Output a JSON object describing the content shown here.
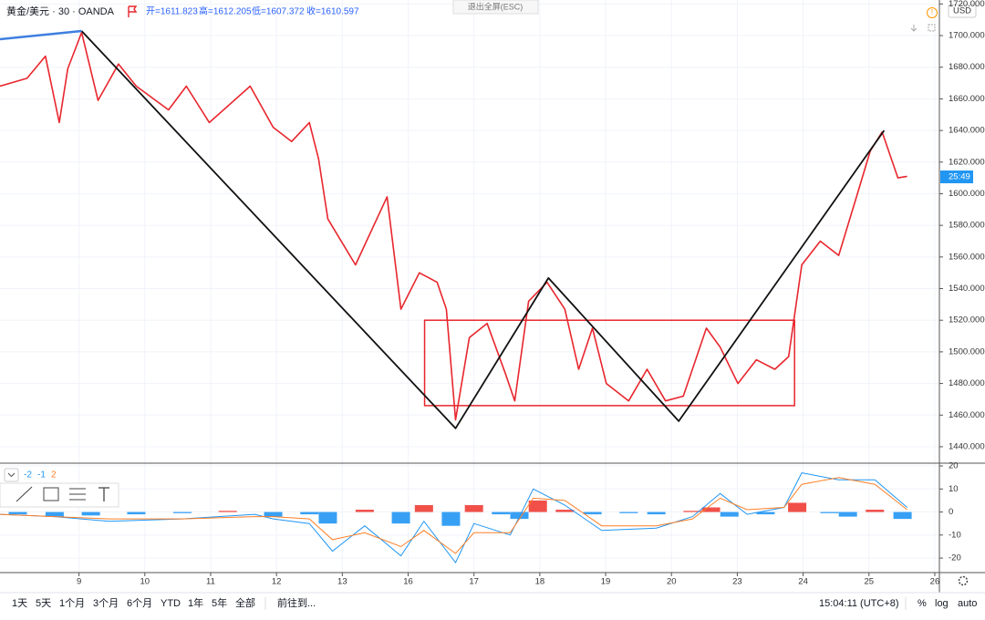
{
  "header": {
    "symbol": "黄金/美元 · 30 · OANDA",
    "open": "开=1611.823",
    "high": "高=1612.205",
    "low": "低=1607.372",
    "close": "收=1610.597"
  },
  "exit_fullscreen": "退出全屏(ESC)",
  "currency": "USD",
  "countdown": "25:49",
  "indicator_params": [
    "-2",
    "-1",
    "2"
  ],
  "chart_data": [
    {
      "type": "line",
      "xlim": [
        -1.2,
        13.07
      ],
      "ylim": [
        1429.6,
        1722.5
      ],
      "yticks": [
        {
          "value": 1440,
          "label": "1440.000"
        },
        {
          "value": 1460,
          "label": "1460.000"
        },
        {
          "value": 1480,
          "label": "1480.000"
        },
        {
          "value": 1500,
          "label": "1500.000"
        },
        {
          "value": 1520,
          "label": "1520.000"
        },
        {
          "value": 1540,
          "label": "1540.000"
        },
        {
          "value": 1560,
          "label": "1560.000"
        },
        {
          "value": 1580,
          "label": "1580.000"
        },
        {
          "value": 1600,
          "label": "1600.000"
        },
        {
          "value": 1620,
          "label": "1620.000"
        },
        {
          "value": 1640,
          "label": "1640.000"
        },
        {
          "value": 1660,
          "label": "1660.000"
        },
        {
          "value": 1680,
          "label": "1680.000"
        },
        {
          "value": 1700,
          "label": "1700.000"
        },
        {
          "value": 1720,
          "label": "1720.000"
        }
      ],
      "grid": true,
      "series": [
        {
          "color": "#e8262d",
          "width": 1.6,
          "x": [
            -1.2,
            -0.79,
            -0.51,
            -0.3,
            -0.17,
            0.04,
            0.29,
            0.6,
            0.87,
            1.36,
            1.63,
            1.98,
            2.6,
            2.95,
            3.23,
            3.5,
            3.64,
            3.78,
            4.2,
            4.68,
            4.89,
            5.17,
            5.44,
            5.58,
            5.72,
            5.93,
            6.2,
            6.48,
            6.62,
            6.83,
            7.11,
            7.38,
            7.59,
            7.8,
            8.01,
            8.35,
            8.63,
            8.91,
            9.18,
            9.53,
            9.74,
            10.01,
            10.29,
            10.57,
            10.78,
            10.98,
            11.26,
            11.54,
            11.81,
            12.02,
            12.2,
            12.44,
            12.58
          ],
          "values": [
            1668,
            1673,
            1687,
            1645,
            1679,
            1702,
            1659,
            1682,
            1668,
            1653,
            1668,
            1645,
            1668,
            1642,
            1633,
            1645,
            1622,
            1584,
            1555,
            1598,
            1527,
            1550,
            1544,
            1527,
            1457,
            1509,
            1518,
            1486,
            1469,
            1532,
            1544,
            1527,
            1489,
            1515,
            1480,
            1469,
            1489,
            1469,
            1472,
            1515,
            1503,
            1480,
            1495,
            1489,
            1497,
            1555,
            1570,
            1561,
            1598,
            1627,
            1639,
            1610,
            1611
          ]
        },
        {
          "color": "#111111",
          "width": 1.8,
          "x": [
            0.04,
            5.72,
            7.13,
            9.11,
            12.23
          ],
          "values": [
            1702.9,
            1451.6,
            1546.7,
            1456.2,
            1640
          ]
        },
        {
          "color": "#3f7fe0",
          "width": 2.4,
          "x": [
            -1.2,
            0.04
          ],
          "values": [
            1697.7,
            1702.9
          ]
        }
      ],
      "box": {
        "x": [
          5.25,
          10.87
        ],
        "y": [
          1466,
          1520
        ],
        "color": "#e8262d"
      }
    },
    {
      "type": "macd",
      "xlim": [
        -1.2,
        13.07
      ],
      "ylim": [
        -26.3,
        21.2
      ],
      "xticks": [
        {
          "value": 0,
          "label": "9"
        },
        {
          "value": 1,
          "label": "10"
        },
        {
          "value": 2,
          "label": "11"
        },
        {
          "value": 3,
          "label": "12"
        },
        {
          "value": 4,
          "label": "13"
        },
        {
          "value": 5,
          "label": "16"
        },
        {
          "value": 6,
          "label": "17"
        },
        {
          "value": 7,
          "label": "18"
        },
        {
          "value": 8,
          "label": "19"
        },
        {
          "value": 9,
          "label": "20"
        },
        {
          "value": 10,
          "label": "23"
        },
        {
          "value": 11,
          "label": "24"
        },
        {
          "value": 12,
          "label": "25"
        },
        {
          "value": 13,
          "label": "26"
        }
      ],
      "yticks": [
        -20,
        -10,
        0,
        10,
        20
      ],
      "grid": true,
      "x": [
        -1.2,
        -0.37,
        0.46,
        1.57,
        2.67,
        2.95,
        3.5,
        3.85,
        4.34,
        4.89,
        5.24,
        5.72,
        6.0,
        6.55,
        6.9,
        7.38,
        7.94,
        8.77,
        9.32,
        9.74,
        10.15,
        10.71,
        10.98,
        11.54,
        12.09,
        12.58
      ],
      "series": [
        {
          "color": "#2196f3",
          "values": [
            -1,
            -2,
            -4,
            -3,
            -1,
            -3,
            -5,
            -17,
            -6,
            -19,
            -4,
            -22,
            -5,
            -10,
            10,
            3,
            -8,
            -7,
            -2,
            8,
            -1,
            2,
            17,
            14,
            14,
            2
          ]
        },
        {
          "color": "#ff7f27",
          "values": [
            -1,
            -2,
            -3,
            -3,
            -2,
            -2,
            -3,
            -12,
            -9,
            -15,
            -8,
            -18,
            -9,
            -9,
            6,
            5,
            -6,
            -6,
            -3,
            6,
            1,
            2,
            12,
            15,
            12,
            1
          ]
        }
      ],
      "histogram": {
        "x": [
          -0.93,
          -0.37,
          0.18,
          0.87,
          1.57,
          2.26,
          2.95,
          3.5,
          3.78,
          4.34,
          4.89,
          5.24,
          5.65,
          6.0,
          6.41,
          6.69,
          6.97,
          7.38,
          7.8,
          8.35,
          8.77,
          9.32,
          9.6,
          9.88,
          10.43,
          10.91,
          11.4,
          11.68,
          12.09,
          12.51
        ],
        "values": [
          -1,
          -2,
          -1.5,
          -1,
          -0.5,
          0.5,
          -2,
          -1,
          -5,
          1,
          -5,
          3,
          -6,
          3,
          -1,
          -3,
          5,
          1,
          -1,
          -0.5,
          -1,
          0.5,
          2,
          -2,
          -1,
          4,
          -0.5,
          -2,
          1,
          -3
        ],
        "colors": {
          "positive": "#ef3d35",
          "negative": "#2196f3"
        }
      }
    }
  ],
  "bottom_bar": {
    "ranges": [
      "1天",
      "5天",
      "1个月",
      "3个月",
      "6个月",
      "YTD",
      "1年",
      "5年",
      "全部"
    ],
    "goto": "前往到...",
    "time": "15:04:11 (UTC+8)",
    "percent": "%",
    "log": "log",
    "auto": "auto"
  }
}
